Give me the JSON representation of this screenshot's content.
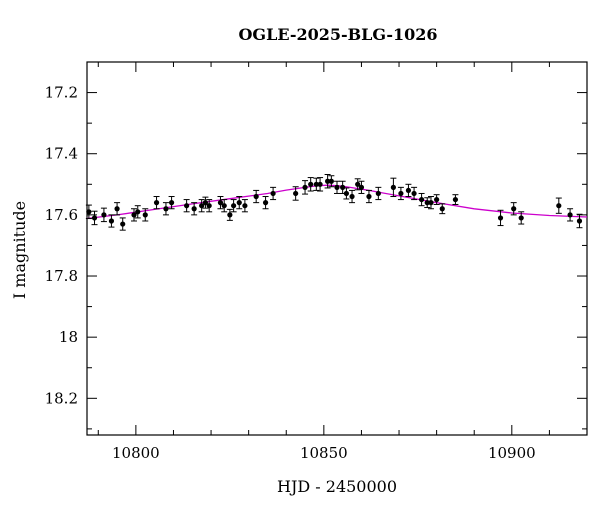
{
  "chart_data": {
    "type": "scatter",
    "title": "OGLE-2025-BLG-1026",
    "xlabel": "HJD - 2450000",
    "ylabel": "I magnitude",
    "xlim": [
      10787,
      10920
    ],
    "ylim": [
      17.1,
      18.32
    ],
    "y_inverted": true,
    "x_ticks": [
      10800,
      10850,
      10900
    ],
    "x_tick_labels": [
      "10800",
      "10850",
      "10900"
    ],
    "y_ticks": [
      17.2,
      17.4,
      17.6,
      17.8,
      18.0,
      18.2
    ],
    "y_tick_labels": [
      "17.2",
      "17.4",
      "17.6",
      "17.8",
      "18",
      "18.2"
    ],
    "grid": false,
    "colors": {
      "points": "#000000",
      "model": "#cc00cc"
    },
    "series": [
      {
        "kind": "points_with_errorbars",
        "x": [
          10787.5,
          10789.0,
          10791.5,
          10793.5,
          10795.0,
          10796.5,
          10799.5,
          10800.5,
          10802.5,
          10805.5,
          10808.0,
          10809.5,
          10813.5,
          10815.5,
          10817.5,
          10818.5,
          10819.5,
          10822.5,
          10823.5,
          10825.0,
          10826.0,
          10827.5,
          10829.0,
          10832.0,
          10834.5,
          10836.5,
          10842.5,
          10845.0,
          10846.5,
          10848.0,
          10849.0,
          10851.0,
          10852.0,
          10853.5,
          10855.0,
          10856.0,
          10857.5,
          10859.0,
          10860.0,
          10862.0,
          10864.5,
          10868.5,
          10870.5,
          10872.5,
          10874.0,
          10876.0,
          10877.5,
          10878.5,
          10880.0,
          10881.5,
          10885.0,
          10897.0,
          10900.5,
          10902.5,
          10912.5,
          10915.5,
          10918.0
        ],
        "y": [
          17.59,
          17.61,
          17.6,
          17.62,
          17.58,
          17.63,
          17.6,
          17.59,
          17.6,
          17.56,
          17.58,
          17.56,
          17.57,
          17.58,
          17.57,
          17.56,
          17.57,
          17.56,
          17.57,
          17.6,
          17.57,
          17.56,
          17.57,
          17.54,
          17.56,
          17.53,
          17.53,
          17.51,
          17.5,
          17.5,
          17.5,
          17.49,
          17.49,
          17.51,
          17.51,
          17.53,
          17.54,
          17.5,
          17.51,
          17.54,
          17.53,
          17.51,
          17.53,
          17.52,
          17.53,
          17.55,
          17.56,
          17.56,
          17.55,
          17.58,
          17.55,
          17.61,
          17.58,
          17.61,
          17.57,
          17.6,
          17.62
        ],
        "yerr": [
          0.022,
          0.022,
          0.022,
          0.02,
          0.02,
          0.02,
          0.02,
          0.02,
          0.02,
          0.02,
          0.02,
          0.02,
          0.02,
          0.02,
          0.02,
          0.018,
          0.02,
          0.02,
          0.02,
          0.018,
          0.02,
          0.02,
          0.02,
          0.02,
          0.02,
          0.02,
          0.022,
          0.022,
          0.022,
          0.02,
          0.022,
          0.022,
          0.018,
          0.02,
          0.02,
          0.018,
          0.02,
          0.018,
          0.02,
          0.02,
          0.02,
          0.03,
          0.02,
          0.02,
          0.02,
          0.02,
          0.016,
          0.02,
          0.016,
          0.016,
          0.016,
          0.025,
          0.02,
          0.02,
          0.025,
          0.02,
          0.022
        ]
      },
      {
        "kind": "model_curve",
        "x": [
          10787,
          10795,
          10805,
          10815,
          10825,
          10835,
          10840,
          10845,
          10848,
          10851,
          10854,
          10857,
          10862,
          10870,
          10880,
          10890,
          10900,
          10910,
          10920
        ],
        "y": [
          17.612,
          17.6,
          17.582,
          17.564,
          17.547,
          17.53,
          17.519,
          17.51,
          17.505,
          17.503,
          17.505,
          17.51,
          17.52,
          17.538,
          17.56,
          17.58,
          17.594,
          17.602,
          17.607
        ]
      }
    ]
  }
}
